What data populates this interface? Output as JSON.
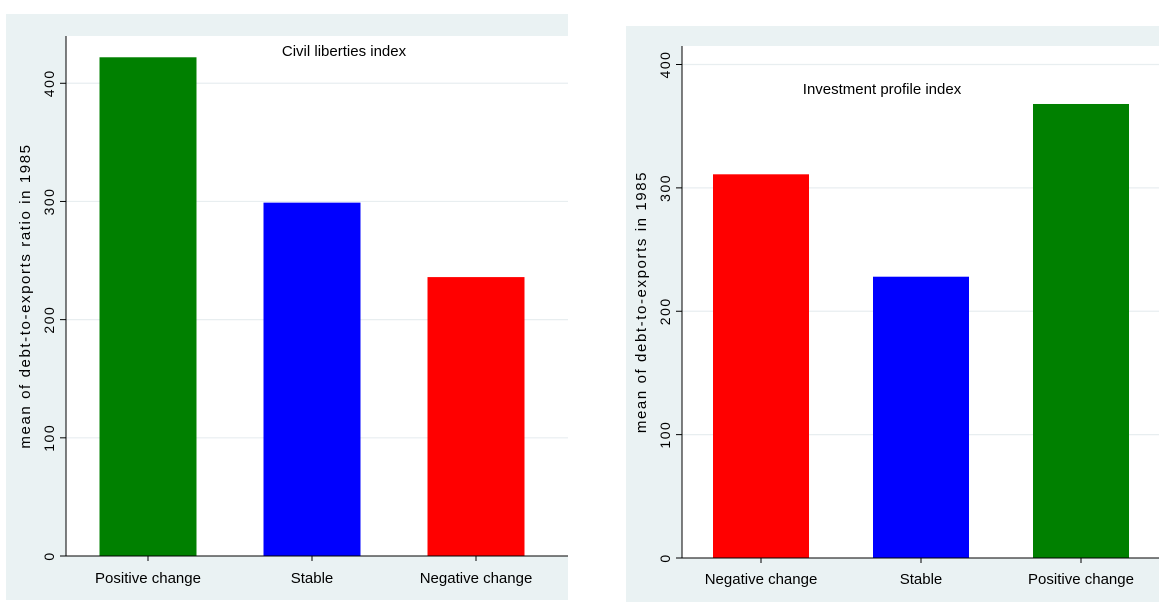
{
  "chart_data": [
    {
      "type": "bar",
      "title": "Civil liberties index",
      "xlabel": "",
      "ylabel": "mean of debt-to-exports ratio in 1985",
      "categories": [
        "Positive change",
        "Stable",
        "Negative change"
      ],
      "values": [
        422,
        299,
        236
      ],
      "colors": [
        "#008000",
        "#0000ff",
        "#ff0000"
      ],
      "ylim": [
        0,
        440
      ],
      "yticks": [
        0,
        100,
        200,
        300,
        400
      ],
      "grid": true
    },
    {
      "type": "bar",
      "title": "Investment profile index",
      "xlabel": "",
      "ylabel": "mean of debt-to-exports in 1985",
      "categories": [
        "Negative change",
        "Stable",
        "Positive change"
      ],
      "values": [
        311,
        228,
        368
      ],
      "colors": [
        "#ff0000",
        "#0000ff",
        "#008000"
      ],
      "ylim": [
        0,
        415
      ],
      "yticks": [
        0,
        100,
        200,
        300,
        400
      ],
      "grid": true
    }
  ]
}
